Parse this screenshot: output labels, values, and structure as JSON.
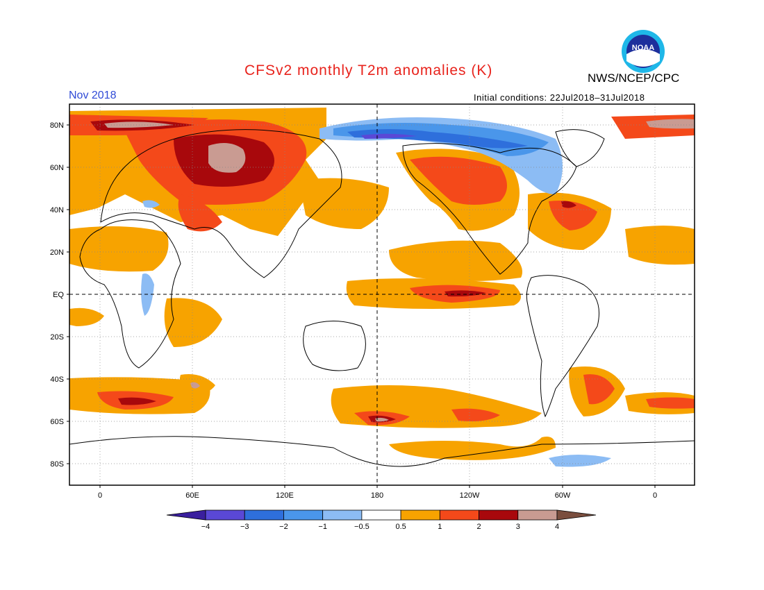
{
  "header": {
    "title": "CFSv2 monthly T2m anomalies (K)",
    "organization": "NWS/NCEP/CPC",
    "logo_text": "NOAA",
    "valid_month": "Nov 2018",
    "initial_conditions": "Initial conditions: 22Jul2018–31Jul2018"
  },
  "axes": {
    "lat_labels": [
      "80N",
      "60N",
      "40N",
      "20N",
      "EQ",
      "20S",
      "40S",
      "60S",
      "80S"
    ],
    "lon_labels": [
      "0",
      "60E",
      "120E",
      "180",
      "120W",
      "60W",
      "0"
    ]
  },
  "colorbar": {
    "boundaries": [
      "−4",
      "−3",
      "−2",
      "−1",
      "−0.5",
      "0.5",
      "1",
      "2",
      "3",
      "4"
    ],
    "colors": [
      "#3a1f9e",
      "#5a48d6",
      "#2e6fdc",
      "#4a96ea",
      "#8cbcf4",
      "#ffffff",
      "#f7a300",
      "#f4491a",
      "#a8080c",
      "#c99b92",
      "#7a4e3e"
    ]
  },
  "colors": {
    "title": "#e8231c",
    "month": "#2f4ad6"
  }
}
